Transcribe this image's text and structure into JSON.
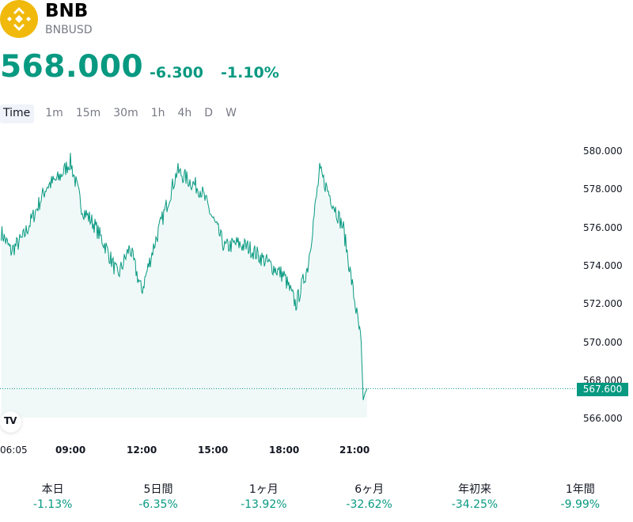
{
  "header": {
    "symbol": "BNB",
    "pair": "BNBUSD",
    "price": "568.000",
    "change": "-6.300",
    "change_percent": "-1.10%",
    "color_up": "#089981",
    "logo_icon": "bnb-logo-icon"
  },
  "intervals": [
    "Time",
    "1m",
    "15m",
    "30m",
    "1h",
    "4h",
    "D",
    "W"
  ],
  "active_interval": "Time",
  "chart_data": {
    "type": "area",
    "y_ticks": [
      "580.000",
      "578.000",
      "576.000",
      "574.000",
      "572.000",
      "570.000",
      "568.000",
      "566.000"
    ],
    "ylim": [
      565.8,
      581.3
    ],
    "x_ticks": [
      "06:05",
      "09:00",
      "12:00",
      "15:00",
      "18:00",
      "21:00"
    ],
    "x": [
      "06:05",
      "06:30",
      "07:00",
      "07:30",
      "08:00",
      "08:30",
      "09:00",
      "09:30",
      "10:00",
      "10:30",
      "11:00",
      "11:30",
      "12:00",
      "12:30",
      "13:00",
      "13:30",
      "14:00",
      "14:30",
      "15:00",
      "15:30",
      "16:00",
      "16:30",
      "17:00",
      "17:30",
      "18:00",
      "18:30",
      "19:00",
      "19:30",
      "20:00",
      "20:30",
      "20:45",
      "21:00",
      "21:15",
      "21:20",
      "21:25",
      "21:30"
    ],
    "values": [
      575.8,
      574.8,
      575.5,
      576.8,
      578.2,
      578.6,
      579.5,
      577.0,
      576.2,
      575.0,
      573.5,
      575.0,
      572.7,
      575.0,
      577.0,
      579.0,
      578.5,
      578.0,
      576.5,
      575.0,
      575.2,
      575.0,
      574.5,
      574.0,
      573.5,
      572.0,
      574.0,
      579.0,
      577.5,
      576.0,
      574.0,
      572.0,
      570.0,
      567.0,
      567.4,
      567.6
    ],
    "last_price": "567.600",
    "last_price_value": 567.6,
    "line_color": "#089981",
    "grid": false
  },
  "performance": [
    {
      "label": "本日",
      "value": "-1.13%"
    },
    {
      "label": "5日間",
      "value": "-6.35%"
    },
    {
      "label": "1ヶ月",
      "value": "-13.92%"
    },
    {
      "label": "6ヶ月",
      "value": "-32.62%"
    },
    {
      "label": "年初来",
      "value": "-34.25%"
    },
    {
      "label": "1年間",
      "value": "-9.99%"
    }
  ]
}
